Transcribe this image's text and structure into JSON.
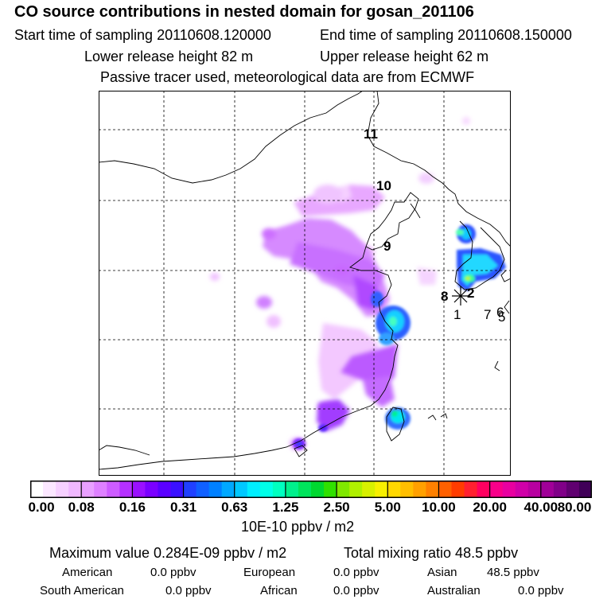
{
  "header": {
    "title": "CO  source contributions in nested domain for gosan_201106",
    "start_time": "Start time of sampling 20110608.120000",
    "end_time": "End time of sampling 20110608.150000",
    "lower_release": "Lower release height   82 m",
    "upper_release": "Upper release height   62 m",
    "tracer_note": "Passive tracer used, meteorological data are from ECMWF"
  },
  "map": {
    "trajectory_labels": [
      "11",
      "10",
      "9",
      "8",
      "2",
      "1",
      "7",
      "6",
      "5"
    ],
    "receptor_marker": "asterisk"
  },
  "colorbar": {
    "ticks": [
      "0.00",
      "0.08",
      "0.16",
      "0.31",
      "0.63",
      "1.25",
      "2.50",
      "5.00",
      "10.00",
      "20.00",
      "40.00",
      "80.00"
    ],
    "colors": [
      "#ffffff",
      "#fbe7ff",
      "#f6d0ff",
      "#f0b8ff",
      "#e9a0ff",
      "#de80ff",
      "#cd5cff",
      "#b530ff",
      "#9a10ff",
      "#7a00ff",
      "#5a00ff",
      "#3a10ff",
      "#2040ff",
      "#1060ff",
      "#0080ff",
      "#00a8ff",
      "#00c8ff",
      "#00eeff",
      "#00ffe8",
      "#00ffc0",
      "#00f08c",
      "#00e45c",
      "#00d830",
      "#30e000",
      "#80e800",
      "#b0f000",
      "#d8f000",
      "#f8f000",
      "#ffd800",
      "#ffbe00",
      "#ffa000",
      "#ff8000",
      "#ff6000",
      "#ff3c00",
      "#ff2030",
      "#ff0060",
      "#f8008a",
      "#e800a0",
      "#d000a8",
      "#b800a0",
      "#a00098",
      "#800088",
      "#600070",
      "#400058"
    ],
    "units": "10E-10 ppbv / m2"
  },
  "stats": {
    "max_value": "Maximum value  0.284E-09 ppbv / m2",
    "total_mixing": "Total mixing ratio       48.5 ppbv",
    "american_label": "American",
    "american_value": "0.0 ppbv",
    "european_label": "European",
    "european_value": "0.0 ppbv",
    "asian_label": "Asian",
    "asian_value": "48.5 ppbv",
    "south_american_label": "South American",
    "south_american_value": "0.0 ppbv",
    "african_label": "African",
    "african_value": "0.0 ppbv",
    "australian_label": "Australian",
    "australian_value": "0.0 ppbv"
  }
}
